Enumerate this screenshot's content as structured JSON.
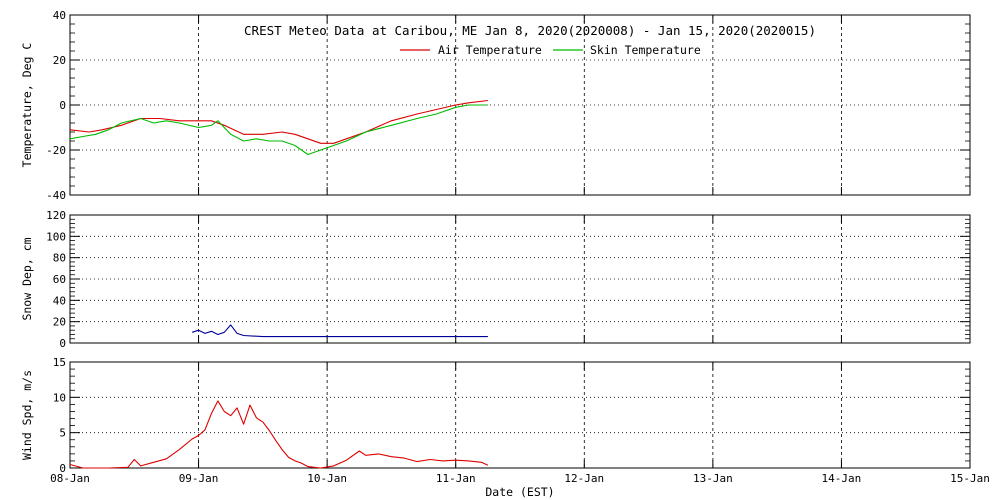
{
  "title": "CREST Meteo Data at Caribou, ME   Jan  8, 2020(2020008) - Jan 15, 2020(2020015)",
  "xlabel": "Date (EST)",
  "x_ticks": [
    "08-Jan",
    "09-Jan",
    "10-Jan",
    "11-Jan",
    "12-Jan",
    "13-Jan",
    "14-Jan",
    "15-Jan"
  ],
  "colors": {
    "air": "#dd0000",
    "skin": "#00bb00",
    "snow": "#000099",
    "wind": "#dd0000",
    "grid": "#000000"
  },
  "chart_data": [
    {
      "type": "line",
      "ylabel": "Temperature, Deg C",
      "ylim": [
        -40,
        40
      ],
      "yticks": [
        "-40",
        "-20",
        "0",
        "20",
        "40"
      ],
      "xlim": [
        0,
        7
      ],
      "x_unit": "days since 08-Jan 00:00",
      "grid": true,
      "legend": "top-center",
      "series": [
        {
          "name": "Air Temperature",
          "color": "#dd0000",
          "x": [
            0,
            0.15,
            0.25,
            0.4,
            0.55,
            0.7,
            0.85,
            1.0,
            1.1,
            1.2,
            1.35,
            1.5,
            1.65,
            1.75,
            1.85,
            1.95,
            2.05,
            2.15,
            2.3,
            2.5,
            2.7,
            2.85,
            3.0,
            3.1,
            3.25
          ],
          "y": [
            -11,
            -12,
            -11,
            -9,
            -6,
            -6,
            -7,
            -7,
            -7,
            -9,
            -13,
            -13,
            -12,
            -13,
            -15,
            -17,
            -17,
            -15,
            -12,
            -7,
            -4,
            -2,
            0,
            1,
            2
          ]
        },
        {
          "name": "Skin Temperature",
          "color": "#00bb00",
          "x": [
            0,
            0.1,
            0.2,
            0.3,
            0.4,
            0.55,
            0.65,
            0.75,
            0.85,
            1.0,
            1.1,
            1.15,
            1.25,
            1.35,
            1.45,
            1.55,
            1.65,
            1.75,
            1.85,
            1.95,
            2.05,
            2.15,
            2.3,
            2.5,
            2.7,
            2.85,
            3.0,
            3.1,
            3.25
          ],
          "y": [
            -15,
            -14,
            -13,
            -11,
            -8,
            -6,
            -8,
            -7,
            -8,
            -10,
            -9,
            -7,
            -13,
            -16,
            -15,
            -16,
            -16,
            -18,
            -22,
            -20,
            -18,
            -16,
            -12,
            -9,
            -6,
            -4,
            -1,
            0,
            0
          ]
        }
      ]
    },
    {
      "type": "line",
      "ylabel": "Snow Dep, cm",
      "ylim": [
        0,
        120
      ],
      "yticks": [
        "0",
        "20",
        "40",
        "60",
        "80",
        "100",
        "120"
      ],
      "xlim": [
        0,
        7
      ],
      "x_unit": "days since 08-Jan 00:00",
      "grid": true,
      "series": [
        {
          "name": "Snow Depth",
          "color": "#000099",
          "x": [
            0.95,
            1.0,
            1.05,
            1.1,
            1.15,
            1.2,
            1.25,
            1.3,
            1.35,
            1.5,
            2.0,
            2.5,
            3.0,
            3.25
          ],
          "y": [
            10,
            12,
            9,
            11,
            8,
            10,
            17,
            9,
            7,
            6,
            6,
            6,
            6,
            6
          ]
        }
      ]
    },
    {
      "type": "line",
      "ylabel": "Wind Spd, m/s",
      "ylim": [
        0,
        15
      ],
      "yticks": [
        "0",
        "5",
        "10",
        "15"
      ],
      "xlim": [
        0,
        7
      ],
      "x_unit": "days since 08-Jan 00:00",
      "grid": true,
      "series": [
        {
          "name": "Wind Speed",
          "color": "#dd0000",
          "x": [
            0,
            0.1,
            0.3,
            0.45,
            0.5,
            0.55,
            0.65,
            0.75,
            0.85,
            0.95,
            1.0,
            1.05,
            1.1,
            1.15,
            1.2,
            1.25,
            1.3,
            1.35,
            1.4,
            1.45,
            1.5,
            1.55,
            1.6,
            1.65,
            1.7,
            1.75,
            1.8,
            1.85,
            1.95,
            2.05,
            2.15,
            2.25,
            2.3,
            2.4,
            2.5,
            2.6,
            2.7,
            2.8,
            2.9,
            3.0,
            3.1,
            3.2,
            3.25
          ],
          "y": [
            0.5,
            0,
            0,
            0.1,
            1.2,
            0.3,
            0.8,
            1.3,
            2.6,
            4.1,
            4.6,
            5.4,
            7.7,
            9.5,
            8.0,
            7.4,
            8.5,
            6.2,
            8.9,
            7.1,
            6.5,
            5.3,
            3.9,
            2.6,
            1.5,
            1.0,
            0.7,
            0.2,
            0,
            0.3,
            1.1,
            2.4,
            1.8,
            2.0,
            1.6,
            1.4,
            0.9,
            1.2,
            1.0,
            1.1,
            1.0,
            0.8,
            0.4
          ]
        }
      ]
    }
  ]
}
